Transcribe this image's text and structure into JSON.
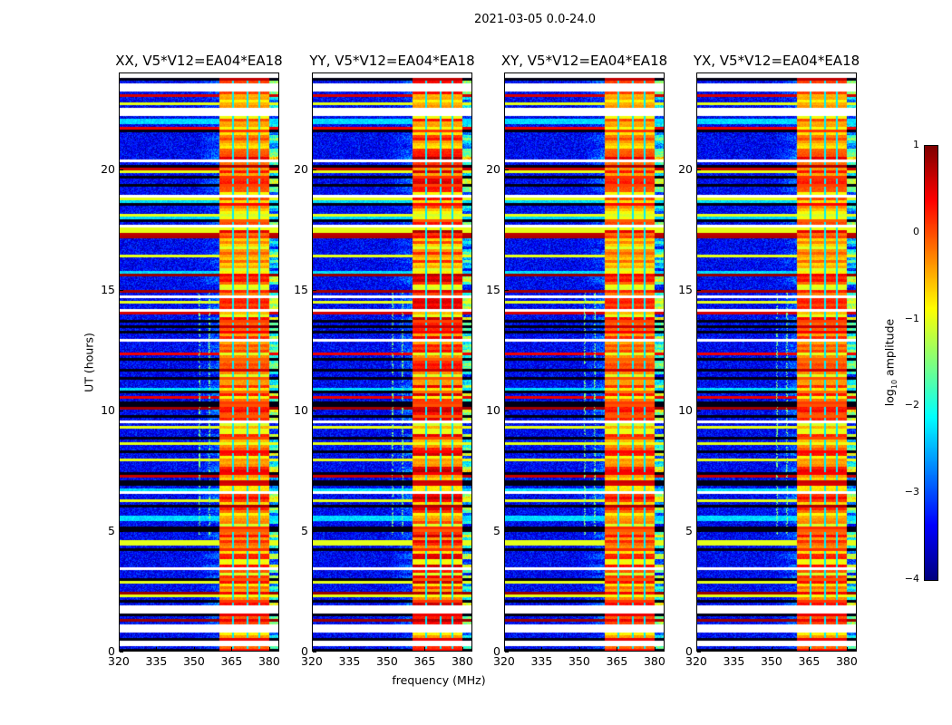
{
  "suptitle": "2021-03-05 0.0-24.0",
  "chart_data": {
    "type": "heatmap",
    "title": "2021-03-05 0.0-24.0",
    "xlabel": "frequency (MHz)",
    "ylabel": "UT (hours)",
    "xlim": [
      320,
      384
    ],
    "ylim": [
      0,
      24
    ],
    "xticks": [
      320,
      335,
      350,
      365,
      380
    ],
    "yticks": [
      0,
      5,
      10,
      15,
      20
    ],
    "panels": [
      {
        "title": "XX, V5*V12=EA04*EA18",
        "band_mhz": [
          360,
          380
        ]
      },
      {
        "title": "YY, V5*V12=EA04*EA18",
        "band_mhz": [
          360,
          380
        ]
      },
      {
        "title": "XY, V5*V12=EA04*EA18",
        "band_mhz": [
          360,
          380
        ]
      },
      {
        "title": "YX, V5*V12=EA04*EA18",
        "band_mhz": [
          360,
          380
        ]
      }
    ],
    "colorbar": {
      "label_prefix": "log",
      "label_sub": "10",
      "label_suffix": " amplitude",
      "colormap": "jet",
      "range": [
        -4,
        1
      ],
      "ticks": [
        1,
        0,
        -1,
        -2,
        -3,
        -4
      ]
    }
  }
}
